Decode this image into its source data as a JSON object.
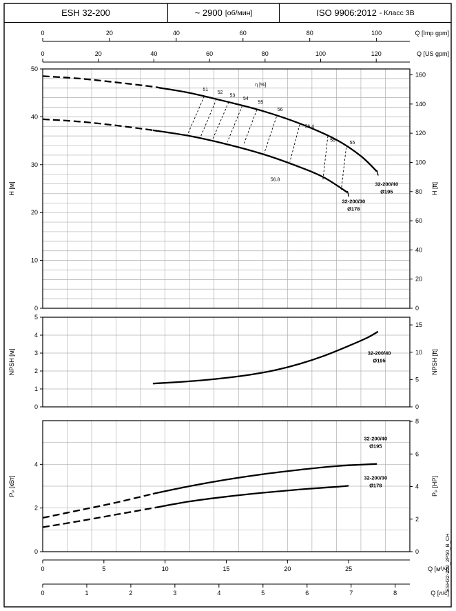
{
  "header": {
    "model": "ESH 32-200",
    "speed_value": "~ 2900",
    "speed_unit": "[об/мин]",
    "standard_value": "ISO 9906:2012",
    "standard_suffix": "- Класс 3В"
  },
  "side_code": "ESH32-200_2P50_B_CH",
  "colors": {
    "curve": "#000000",
    "grid": "#b0b0b0",
    "background": "#ffffff"
  },
  "chart_data": {
    "shared_x": {
      "q_max_m3h": 30,
      "grid_step_m3h": 2,
      "top_scales": [
        {
          "label": "Q [Imp gpm]",
          "unit_to_m3h": 0.27277,
          "ticks": [
            0,
            20,
            40,
            60,
            80,
            100
          ]
        },
        {
          "label": "Q [US gpm]",
          "unit_to_m3h": 0.22712,
          "ticks": [
            0,
            20,
            40,
            60,
            80,
            100,
            120
          ]
        }
      ],
      "bottom_scales": [
        {
          "label": "Q [м³/ч]",
          "unit_to_m3h": 1,
          "ticks": [
            0,
            5,
            10,
            15,
            20,
            25
          ]
        },
        {
          "label": "Q [л/с]",
          "unit_to_m3h": 3.6,
          "ticks": [
            0,
            1,
            2,
            3,
            4,
            5,
            6,
            7,
            8
          ]
        }
      ]
    },
    "charts": [
      {
        "id": "head",
        "type": "line",
        "y_left": {
          "label": "H [м]",
          "min": 0,
          "max": 50,
          "ticks": [
            0,
            10,
            20,
            30,
            40,
            50
          ],
          "grid_step": 2
        },
        "y_right": {
          "label": "H [ft]",
          "ticks": [
            0,
            20,
            40,
            60,
            80,
            100,
            120,
            140,
            160
          ],
          "unit_to_m": 0.3048
        },
        "series": [
          {
            "name": "32-200/40 Ø195",
            "dash_until_q": 9.5,
            "end_tick": true,
            "points": [
              [
                0,
                48.5
              ],
              [
                3,
                48.0
              ],
              [
                6,
                47.2
              ],
              [
                9,
                46.3
              ],
              [
                12,
                45.0
              ],
              [
                15,
                43.2
              ],
              [
                18,
                41.2
              ],
              [
                21,
                38.6
              ],
              [
                24,
                35.2
              ],
              [
                26,
                31.8
              ],
              [
                27.3,
                28.6
              ]
            ]
          },
          {
            "name": "32-200/30 Ø178",
            "dash_until_q": 9.0,
            "end_tick": true,
            "points": [
              [
                0,
                39.5
              ],
              [
                3,
                39.0
              ],
              [
                6,
                38.2
              ],
              [
                9,
                37.2
              ],
              [
                12,
                36.0
              ],
              [
                15,
                34.3
              ],
              [
                18,
                32.2
              ],
              [
                21,
                29.5
              ],
              [
                23,
                27.3
              ],
              [
                24.9,
                24.2
              ]
            ]
          }
        ],
        "efficiency": {
          "axis_label": {
            "text": "η [%]",
            "q": 17.8,
            "v": 46.4
          },
          "lines": [
            {
              "label": "51",
              "q1": 13.2,
              "v1": 44.3,
              "q2": 11.8,
              "v2": 36.1,
              "lq": 13.3,
              "lv": 45.4
            },
            {
              "label": "52",
              "q1": 14.2,
              "v1": 43.7,
              "q2": 12.9,
              "v2": 35.8,
              "lq": 14.5,
              "lv": 44.8
            },
            {
              "label": "53",
              "q1": 15.2,
              "v1": 43.1,
              "q2": 13.9,
              "v2": 35.4,
              "lq": 15.5,
              "lv": 44.2
            },
            {
              "label": "54",
              "q1": 16.3,
              "v1": 42.3,
              "q2": 15.1,
              "v2": 34.8,
              "lq": 16.6,
              "lv": 43.5
            },
            {
              "label": "55",
              "q1": 17.5,
              "v1": 41.5,
              "q2": 16.4,
              "v2": 34.1,
              "lq": 17.8,
              "lv": 42.7
            },
            {
              "label": "56",
              "q1": 19.1,
              "v1": 40.0,
              "q2": 18.1,
              "v2": 32.4,
              "lq": 19.4,
              "lv": 41.2
            },
            {
              "label": "56.4",
              "q1": 21.0,
              "v1": 38.4,
              "q2": 20.2,
              "v2": 30.6,
              "lq": 21.8,
              "lv": 37.7
            },
            {
              "label": "56",
              "q1": 23.3,
              "v1": 36.0,
              "q2": 22.9,
              "v2": 26.9,
              "lq": 23.7,
              "lv": 34.8
            },
            {
              "label": "55",
              "q1": 24.8,
              "v1": 33.6,
              "q2": 24.4,
              "v2": 24.8,
              "lq": 25.3,
              "lv": 34.3
            }
          ],
          "point_labels": [
            {
              "text": "56.8",
              "q": 19.0,
              "v": 26.6
            }
          ]
        },
        "annotations": [
          {
            "lines": [
              "32-200/40",
              "Ø195"
            ],
            "q": 28.1,
            "v": 25.6
          },
          {
            "lines": [
              "32-200/30",
              "Ø178"
            ],
            "q": 25.4,
            "v": 22.0
          }
        ]
      },
      {
        "id": "npsh",
        "type": "line",
        "y_left": {
          "label": "NPSH [м]",
          "min": 0,
          "max": 5,
          "ticks": [
            0,
            1,
            2,
            3,
            4,
            5
          ],
          "grid_step": 1
        },
        "y_right": {
          "label": "NPSH [ft]",
          "ticks": [
            0,
            5,
            10,
            15
          ],
          "unit_to_m": 0.3048
        },
        "series": [
          {
            "name": "32-200/40 Ø195",
            "dash_until_q": 0,
            "end_tick": false,
            "points": [
              [
                9,
                1.3
              ],
              [
                11,
                1.38
              ],
              [
                13,
                1.48
              ],
              [
                15,
                1.62
              ],
              [
                17,
                1.8
              ],
              [
                19,
                2.05
              ],
              [
                21,
                2.4
              ],
              [
                23,
                2.85
              ],
              [
                25,
                3.4
              ],
              [
                26.5,
                3.85
              ],
              [
                27.4,
                4.2
              ]
            ]
          }
        ],
        "annotations": [
          {
            "lines": [
              "32-200/40",
              "Ø195"
            ],
            "q": 27.5,
            "v": 2.9
          }
        ]
      },
      {
        "id": "power",
        "type": "line",
        "y_left": {
          "label": "Pₚ [кВт]",
          "min": 0,
          "max": 6,
          "ticks": [
            0,
            2,
            4
          ],
          "grid_step": 1
        },
        "y_right": {
          "label": "Pₚ [HP]",
          "ticks": [
            0,
            2,
            4,
            6,
            8
          ],
          "unit_to_m": 0.7457
        },
        "series": [
          {
            "name": "32-200/40 Ø195",
            "dash_until_q": 9.0,
            "end_tick": false,
            "points": [
              [
                0,
                1.55
              ],
              [
                3,
                1.9
              ],
              [
                6,
                2.25
              ],
              [
                9,
                2.65
              ],
              [
                12,
                3.0
              ],
              [
                15,
                3.3
              ],
              [
                18,
                3.55
              ],
              [
                21,
                3.75
              ],
              [
                24,
                3.92
              ],
              [
                27.3,
                4.02
              ]
            ]
          },
          {
            "name": "32-200/30 Ø178",
            "dash_until_q": 9.3,
            "end_tick": false,
            "points": [
              [
                0,
                1.12
              ],
              [
                3,
                1.4
              ],
              [
                6,
                1.7
              ],
              [
                9,
                2.0
              ],
              [
                12,
                2.3
              ],
              [
                15,
                2.52
              ],
              [
                18,
                2.7
              ],
              [
                21,
                2.85
              ],
              [
                24,
                2.97
              ],
              [
                25,
                3.02
              ]
            ]
          }
        ],
        "annotations": [
          {
            "lines": [
              "32-200/40",
              "Ø195"
            ],
            "q": 27.2,
            "v": 5.1
          },
          {
            "lines": [
              "32-200/30",
              "Ø178"
            ],
            "q": 27.2,
            "v": 3.3
          }
        ]
      }
    ]
  }
}
